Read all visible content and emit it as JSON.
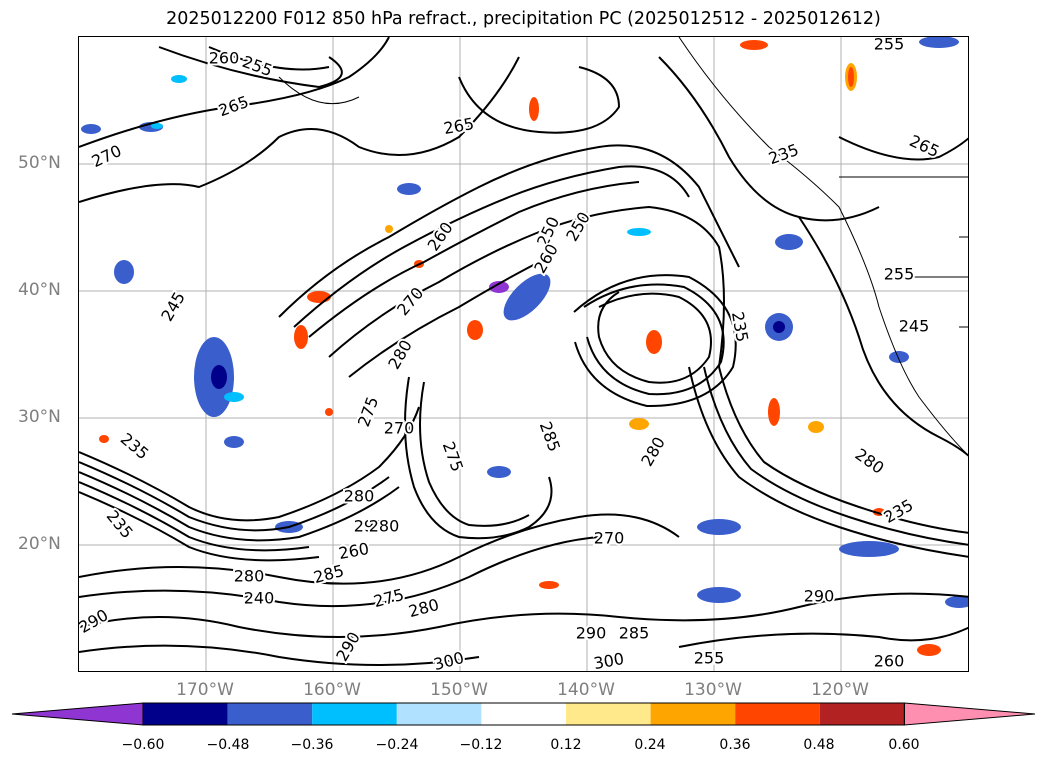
{
  "title": "2025012200 F012 850 hPa refract., precipitation PC (2025012512 - 2025012612)",
  "lat_labels": [
    "50°N",
    "40°N",
    "30°N",
    "20°N"
  ],
  "lon_labels": [
    "170°W",
    "160°W",
    "150°W",
    "140°W",
    "130°W",
    "120°W"
  ],
  "colorbar": {
    "ticks": [
      "−0.60",
      "−0.48",
      "−0.36",
      "−0.24",
      "−0.12",
      "0.12",
      "0.24",
      "0.36",
      "0.48",
      "0.60"
    ],
    "colors": [
      "#8f35d1",
      "#00008b",
      "#3a5fcd",
      "#00bfff",
      "#b0e2ff",
      "#ffffff",
      "#ffe98a",
      "#ffa500",
      "#ff4500",
      "#b22222",
      "#ff8fb0"
    ]
  },
  "contour_labels": [
    "260",
    "255",
    "265",
    "270",
    "255",
    "245",
    "250",
    "235",
    "265",
    "265",
    "260",
    "270",
    "260",
    "250",
    "255",
    "245",
    "235",
    "280",
    "275",
    "270",
    "275",
    "285",
    "280",
    "280",
    "280",
    "235",
    "235",
    "235",
    "290",
    "280",
    "260",
    "270",
    "280",
    "290",
    "285",
    "290",
    "300",
    "300",
    "290",
    "240",
    "285",
    "275",
    "280",
    "290",
    "260",
    "255"
  ]
}
